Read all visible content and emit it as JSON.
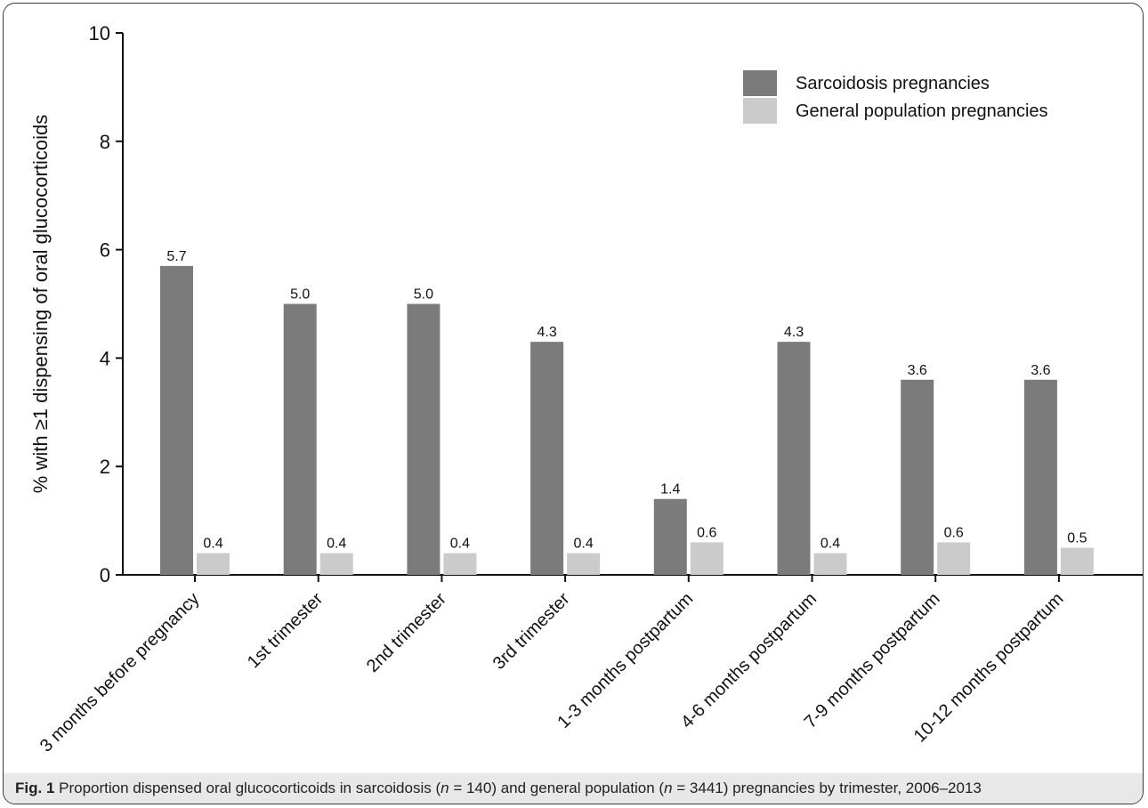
{
  "chart_data": {
    "type": "bar",
    "categories": [
      "3 months before pregnancy",
      "1st trimester",
      "2nd trimester",
      "3rd trimester",
      "1-3 months postpartum",
      "4-6 months postpartum",
      "7-9 months postpartum",
      "10-12 months postpartum"
    ],
    "series": [
      {
        "name": "Sarcoidosis pregnancies",
        "color": "#7b7b7b",
        "values": [
          5.7,
          5.0,
          5.0,
          4.3,
          1.4,
          4.3,
          3.6,
          3.6
        ],
        "labels": [
          "5.7",
          "5.0",
          "5.0",
          "4.3",
          "1.4",
          "4.3",
          "3.6",
          "3.6"
        ]
      },
      {
        "name": "General population pregnancies",
        "color": "#cbcbcb",
        "values": [
          0.4,
          0.4,
          0.4,
          0.4,
          0.6,
          0.4,
          0.6,
          0.5
        ],
        "labels": [
          "0.4",
          "0.4",
          "0.4",
          "0.4",
          "0.6",
          "0.4",
          "0.6",
          "0.5"
        ]
      }
    ],
    "ylabel": "% with ≥1 dispensing of oral glucocorticoids",
    "xlabel": "",
    "ylim": [
      0,
      10
    ],
    "yticks": [
      "0",
      "2",
      "4",
      "6",
      "8",
      "10"
    ],
    "grid": false,
    "legend": "top-right"
  },
  "caption": {
    "label": "Fig. 1",
    "t1": " Proportion dispensed oral glucocorticoids in sarcoidosis (",
    "n_a": "n",
    "t2": " = 140) and general population (",
    "n_b": "n",
    "t3": " = 3441) pregnancies by trimester, 2006–2013"
  }
}
